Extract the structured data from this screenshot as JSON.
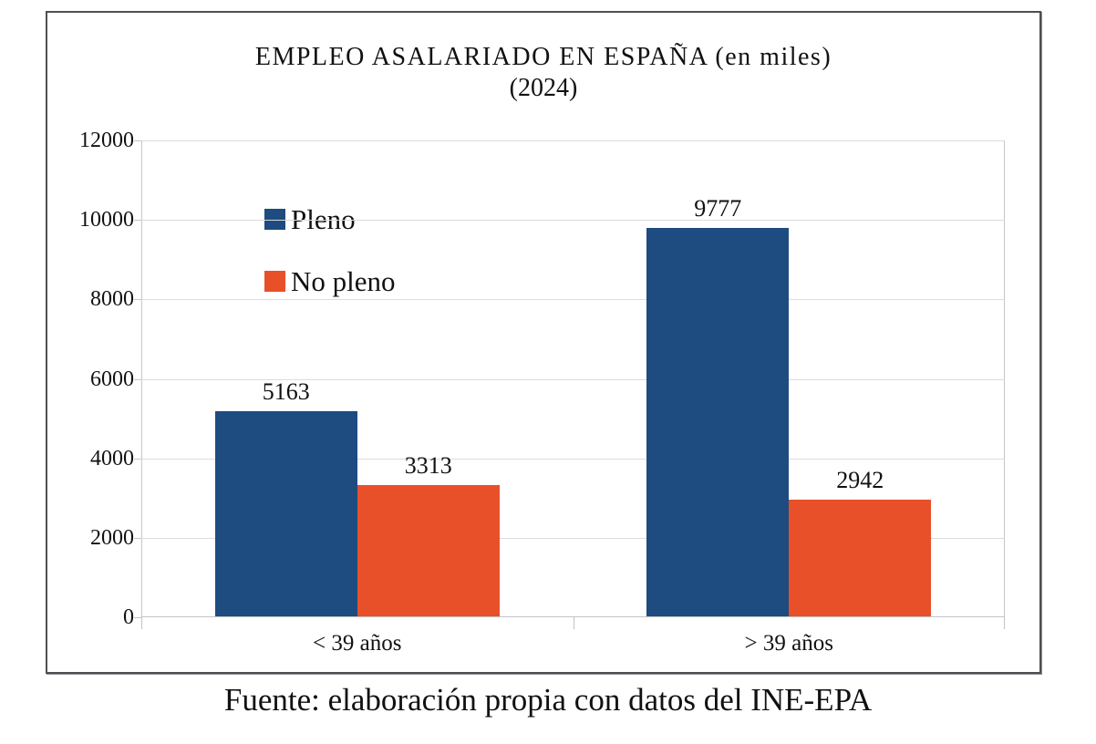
{
  "chart_data": {
    "type": "bar",
    "title": "EMPLEO ASALARIADO EN ESPAÑA (en miles)",
    "subtitle": "(2024)",
    "categories": [
      "< 39 años",
      "> 39 años"
    ],
    "series": [
      {
        "name": "Pleno",
        "color": "#1E4B80",
        "values": [
          5163,
          9777
        ]
      },
      {
        "name": "No pleno",
        "color": "#E8502A",
        "values": [
          3313,
          2942
        ]
      }
    ],
    "ylim": [
      0,
      12000
    ],
    "yticks": [
      0,
      2000,
      4000,
      6000,
      8000,
      10000,
      12000
    ],
    "grid": true,
    "legend_position": "inside-top-left",
    "data_labels": true
  },
  "footer": {
    "source_text": "Fuente: elaboración propia con datos del INE-EPA"
  },
  "frame": {
    "border_color": "#4d4f52",
    "gridline_color": "#dcdcdc"
  }
}
